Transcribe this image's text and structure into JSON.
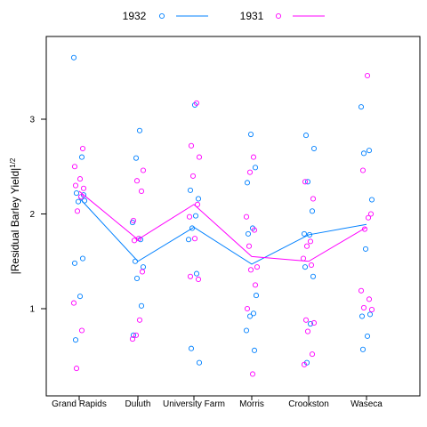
{
  "chart_data": {
    "type": "scatter",
    "ylabel": "|Residual Barley Yield|",
    "ylabel_superscript": "1/2",
    "categories": [
      "Grand Rapids",
      "Duluth",
      "University Farm",
      "Morris",
      "Crookston",
      "Waseca"
    ],
    "yticks": [
      "1",
      "2",
      "3"
    ],
    "ylim": [
      0.2,
      3.9
    ],
    "grid": false,
    "legend": {
      "placement": "top"
    },
    "series": [
      {
        "name": "1932",
        "color": "#0080ff",
        "points": [
          [
            0,
            3.65
          ],
          [
            0,
            2.6
          ],
          [
            0,
            2.22
          ],
          [
            0,
            2.14
          ],
          [
            0,
            2.13
          ],
          [
            0,
            1.53
          ],
          [
            0,
            1.48
          ],
          [
            0,
            1.13
          ],
          [
            0,
            0.67
          ],
          [
            0,
            2.2
          ],
          [
            1,
            2.88
          ],
          [
            1,
            2.59
          ],
          [
            1,
            1.91
          ],
          [
            1,
            1.73
          ],
          [
            1,
            1.5
          ],
          [
            1,
            1.44
          ],
          [
            1,
            1.32
          ],
          [
            1,
            1.03
          ],
          [
            1,
            0.72
          ],
          [
            2,
            3.15
          ],
          [
            2,
            2.25
          ],
          [
            2,
            2.16
          ],
          [
            2,
            1.98
          ],
          [
            2,
            1.85
          ],
          [
            2,
            1.73
          ],
          [
            2,
            1.37
          ],
          [
            2,
            0.58
          ],
          [
            2,
            0.43
          ],
          [
            3,
            2.84
          ],
          [
            3,
            2.49
          ],
          [
            3,
            2.33
          ],
          [
            3,
            1.85
          ],
          [
            3,
            1.79
          ],
          [
            3,
            1.14
          ],
          [
            3,
            0.95
          ],
          [
            3,
            0.92
          ],
          [
            3,
            0.77
          ],
          [
            3,
            0.56
          ],
          [
            4,
            2.83
          ],
          [
            4,
            2.69
          ],
          [
            4,
            2.34
          ],
          [
            4,
            2.03
          ],
          [
            4,
            1.79
          ],
          [
            4,
            1.78
          ],
          [
            4,
            1.44
          ],
          [
            4,
            1.34
          ],
          [
            4,
            0.84
          ],
          [
            4,
            0.43
          ],
          [
            5,
            3.13
          ],
          [
            5,
            2.67
          ],
          [
            5,
            2.64
          ],
          [
            5,
            2.15
          ],
          [
            5,
            1.63
          ],
          [
            5,
            0.94
          ],
          [
            5,
            0.92
          ],
          [
            5,
            0.71
          ],
          [
            5,
            0.57
          ]
        ],
        "trend": [
          2.17,
          1.5,
          1.86,
          1.47,
          1.78,
          1.89
        ]
      },
      {
        "name": "1931",
        "color": "#ff00ff",
        "points": [
          [
            0,
            2.69
          ],
          [
            0,
            2.5
          ],
          [
            0,
            2.37
          ],
          [
            0,
            2.3
          ],
          [
            0,
            2.27
          ],
          [
            0,
            2.18
          ],
          [
            0,
            2.03
          ],
          [
            0,
            1.06
          ],
          [
            0,
            0.77
          ],
          [
            0,
            0.37
          ],
          [
            1,
            2.46
          ],
          [
            1,
            2.35
          ],
          [
            1,
            2.24
          ],
          [
            1,
            1.93
          ],
          [
            1,
            1.74
          ],
          [
            1,
            1.72
          ],
          [
            1,
            1.39
          ],
          [
            1,
            0.88
          ],
          [
            1,
            0.72
          ],
          [
            1,
            0.68
          ],
          [
            2,
            3.17
          ],
          [
            2,
            2.72
          ],
          [
            2,
            2.6
          ],
          [
            2,
            2.4
          ],
          [
            2,
            2.1
          ],
          [
            2,
            1.97
          ],
          [
            2,
            1.74
          ],
          [
            2,
            1.34
          ],
          [
            2,
            1.31
          ],
          [
            3,
            2.6
          ],
          [
            3,
            2.44
          ],
          [
            3,
            1.97
          ],
          [
            3,
            1.83
          ],
          [
            3,
            1.66
          ],
          [
            3,
            1.44
          ],
          [
            3,
            1.41
          ],
          [
            3,
            1.25
          ],
          [
            3,
            1.0
          ],
          [
            3,
            0.31
          ],
          [
            4,
            2.34
          ],
          [
            4,
            2.16
          ],
          [
            4,
            1.71
          ],
          [
            4,
            1.66
          ],
          [
            4,
            1.53
          ],
          [
            4,
            1.46
          ],
          [
            4,
            0.88
          ],
          [
            4,
            0.85
          ],
          [
            4,
            0.76
          ],
          [
            4,
            0.52
          ],
          [
            4,
            0.41
          ],
          [
            5,
            3.46
          ],
          [
            5,
            2.46
          ],
          [
            5,
            2.0
          ],
          [
            5,
            1.96
          ],
          [
            5,
            1.84
          ],
          [
            5,
            1.19
          ],
          [
            5,
            1.1
          ],
          [
            5,
            1.01
          ],
          [
            5,
            0.99
          ]
        ],
        "trend": [
          2.24,
          1.73,
          2.1,
          1.55,
          1.5,
          1.86
        ]
      }
    ]
  }
}
